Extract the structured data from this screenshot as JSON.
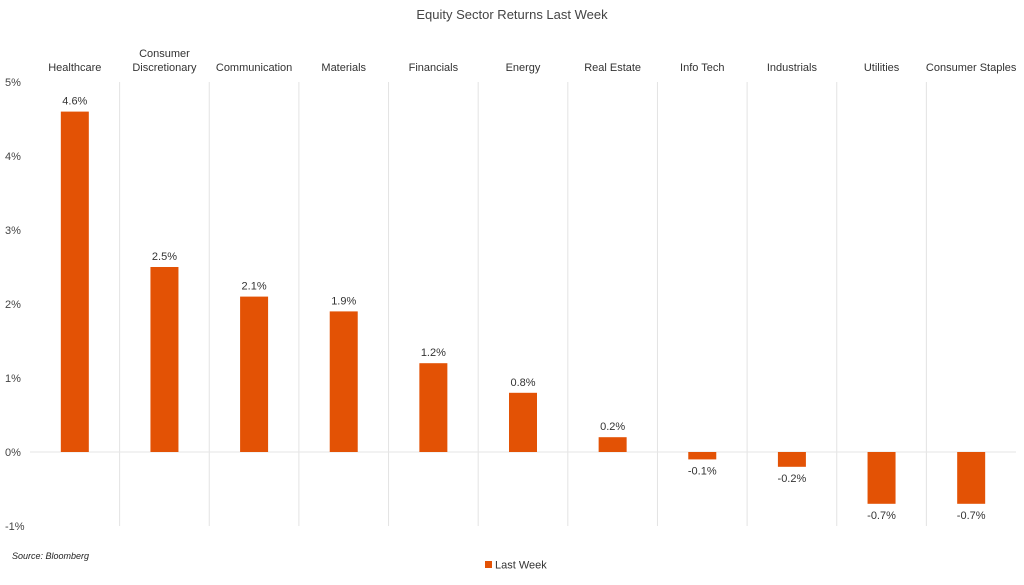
{
  "chart_data": {
    "type": "bar",
    "title": "Equity Sector Returns Last Week",
    "categories": [
      [
        "Healthcare"
      ],
      [
        "Consumer",
        "Discretionary"
      ],
      [
        "Communication"
      ],
      [
        "Materials"
      ],
      [
        "Financials"
      ],
      [
        "Energy"
      ],
      [
        "Real Estate"
      ],
      [
        "Info Tech"
      ],
      [
        "Industrials"
      ],
      [
        "Utilities"
      ],
      [
        "Consumer Staples"
      ]
    ],
    "series": [
      {
        "name": "Last Week",
        "color": "#e35205",
        "values": [
          4.6,
          2.5,
          2.1,
          1.9,
          1.2,
          0.8,
          0.2,
          -0.1,
          -0.2,
          -0.7,
          -0.7
        ],
        "labels": [
          "4.6%",
          "2.5%",
          "2.1%",
          "1.9%",
          "1.2%",
          "0.8%",
          "0.2%",
          "-0.1%",
          "-0.2%",
          "-0.7%",
          "-0.7%"
        ]
      }
    ],
    "ylim": [
      -1,
      5
    ],
    "yticks": [
      5,
      4,
      3,
      2,
      1,
      0,
      -1
    ],
    "ytick_labels": [
      "5%",
      "4%",
      "3%",
      "2%",
      "1%",
      "0%",
      "-1%"
    ],
    "xlabel": "",
    "ylabel": "",
    "grid": "vertical-category-separators",
    "legend_position": "bottom-center",
    "source": "Source: Bloomberg"
  }
}
